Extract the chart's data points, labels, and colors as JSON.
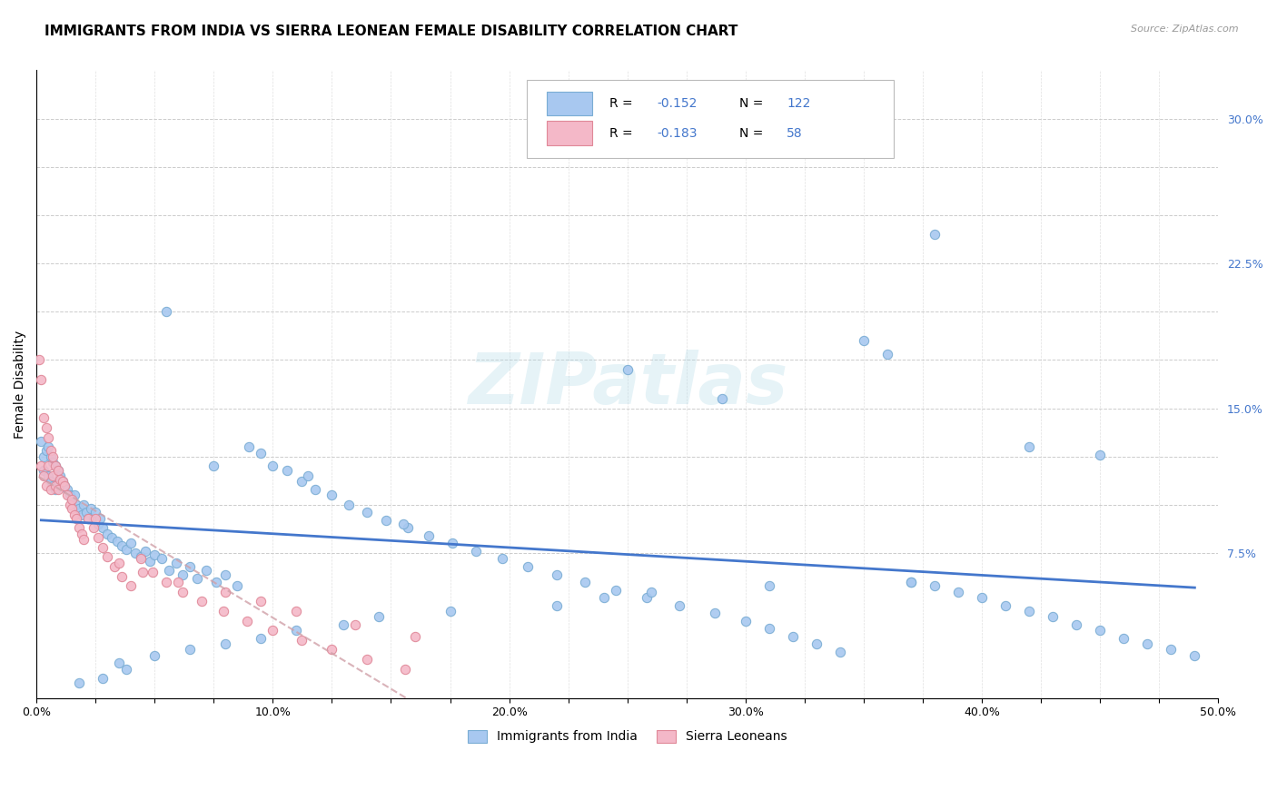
{
  "title": "IMMIGRANTS FROM INDIA VS SIERRA LEONEAN FEMALE DISABILITY CORRELATION CHART",
  "source": "Source: ZipAtlas.com",
  "ylabel": "Female Disability",
  "xlim": [
    0.0,
    0.5
  ],
  "ylim": [
    0.0,
    0.325
  ],
  "grid_color": "#cccccc",
  "background_color": "#ffffff",
  "watermark": "ZIPatlas",
  "watermark_color": "#add8e6",
  "series1_color": "#a8c8f0",
  "series1_edge": "#7aadd4",
  "series2_color": "#f4b8c8",
  "series2_edge": "#e08898",
  "trend1_color": "#4477cc",
  "trend2_color": "#d0a0a8",
  "R1": -0.152,
  "N1": 122,
  "R2": -0.183,
  "N2": 58,
  "legend_label1": "Immigrants from India",
  "legend_label2": "Sierra Leoneans",
  "title_fontsize": 11,
  "axis_label_fontsize": 10,
  "tick_fontsize": 9,
  "blue_text_color": "#4477cc",
  "scatter1_x": [
    0.002,
    0.003,
    0.003,
    0.004,
    0.005,
    0.005,
    0.006,
    0.006,
    0.007,
    0.007,
    0.008,
    0.008,
    0.009,
    0.009,
    0.01,
    0.011,
    0.012,
    0.013,
    0.014,
    0.015,
    0.016,
    0.017,
    0.018,
    0.019,
    0.02,
    0.021,
    0.022,
    0.023,
    0.024,
    0.025,
    0.026,
    0.027,
    0.028,
    0.03,
    0.032,
    0.034,
    0.036,
    0.038,
    0.04,
    0.042,
    0.044,
    0.046,
    0.048,
    0.05,
    0.053,
    0.056,
    0.059,
    0.062,
    0.065,
    0.068,
    0.072,
    0.076,
    0.08,
    0.085,
    0.09,
    0.095,
    0.1,
    0.106,
    0.112,
    0.118,
    0.125,
    0.132,
    0.14,
    0.148,
    0.157,
    0.166,
    0.176,
    0.186,
    0.197,
    0.208,
    0.22,
    0.232,
    0.245,
    0.258,
    0.272,
    0.287,
    0.3,
    0.31,
    0.32,
    0.33,
    0.34,
    0.35,
    0.36,
    0.37,
    0.38,
    0.39,
    0.4,
    0.41,
    0.42,
    0.43,
    0.44,
    0.45,
    0.46,
    0.47,
    0.48,
    0.49,
    0.035,
    0.055,
    0.075,
    0.115,
    0.155,
    0.25,
    0.29,
    0.38,
    0.42,
    0.45,
    0.37,
    0.31,
    0.26,
    0.24,
    0.22,
    0.175,
    0.145,
    0.13,
    0.11,
    0.095,
    0.08,
    0.065,
    0.05,
    0.038,
    0.028,
    0.018
  ],
  "scatter1_y": [
    0.133,
    0.118,
    0.125,
    0.128,
    0.13,
    0.115,
    0.125,
    0.112,
    0.122,
    0.11,
    0.12,
    0.108,
    0.118,
    0.112,
    0.115,
    0.112,
    0.11,
    0.108,
    0.105,
    0.103,
    0.105,
    0.1,
    0.098,
    0.095,
    0.1,
    0.096,
    0.093,
    0.098,
    0.093,
    0.096,
    0.09,
    0.093,
    0.088,
    0.085,
    0.083,
    0.081,
    0.079,
    0.077,
    0.08,
    0.075,
    0.073,
    0.076,
    0.071,
    0.074,
    0.072,
    0.066,
    0.07,
    0.064,
    0.068,
    0.062,
    0.066,
    0.06,
    0.064,
    0.058,
    0.13,
    0.127,
    0.12,
    0.118,
    0.112,
    0.108,
    0.105,
    0.1,
    0.096,
    0.092,
    0.088,
    0.084,
    0.08,
    0.076,
    0.072,
    0.068,
    0.064,
    0.06,
    0.056,
    0.052,
    0.048,
    0.044,
    0.04,
    0.036,
    0.032,
    0.028,
    0.024,
    0.185,
    0.178,
    0.06,
    0.058,
    0.055,
    0.052,
    0.048,
    0.045,
    0.042,
    0.038,
    0.035,
    0.031,
    0.028,
    0.025,
    0.022,
    0.018,
    0.2,
    0.12,
    0.115,
    0.09,
    0.17,
    0.155,
    0.24,
    0.13,
    0.126,
    0.06,
    0.058,
    0.055,
    0.052,
    0.048,
    0.045,
    0.042,
    0.038,
    0.035,
    0.031,
    0.028,
    0.025,
    0.022,
    0.015,
    0.01,
    0.008
  ],
  "scatter2_x": [
    0.001,
    0.002,
    0.002,
    0.003,
    0.003,
    0.004,
    0.004,
    0.005,
    0.005,
    0.006,
    0.006,
    0.007,
    0.007,
    0.008,
    0.008,
    0.009,
    0.009,
    0.01,
    0.011,
    0.012,
    0.013,
    0.014,
    0.015,
    0.016,
    0.017,
    0.018,
    0.019,
    0.02,
    0.022,
    0.024,
    0.026,
    0.028,
    0.03,
    0.033,
    0.036,
    0.04,
    0.044,
    0.049,
    0.055,
    0.062,
    0.07,
    0.079,
    0.089,
    0.1,
    0.112,
    0.125,
    0.14,
    0.156,
    0.015,
    0.025,
    0.035,
    0.045,
    0.06,
    0.08,
    0.095,
    0.11,
    0.135,
    0.16
  ],
  "scatter2_y": [
    0.175,
    0.165,
    0.12,
    0.145,
    0.115,
    0.14,
    0.11,
    0.135,
    0.12,
    0.128,
    0.108,
    0.125,
    0.115,
    0.12,
    0.11,
    0.118,
    0.108,
    0.113,
    0.112,
    0.11,
    0.105,
    0.1,
    0.098,
    0.095,
    0.093,
    0.088,
    0.085,
    0.082,
    0.093,
    0.088,
    0.083,
    0.078,
    0.073,
    0.068,
    0.063,
    0.058,
    0.072,
    0.065,
    0.06,
    0.055,
    0.05,
    0.045,
    0.04,
    0.035,
    0.03,
    0.025,
    0.02,
    0.015,
    0.103,
    0.093,
    0.07,
    0.065,
    0.06,
    0.055,
    0.05,
    0.045,
    0.038,
    0.032
  ]
}
